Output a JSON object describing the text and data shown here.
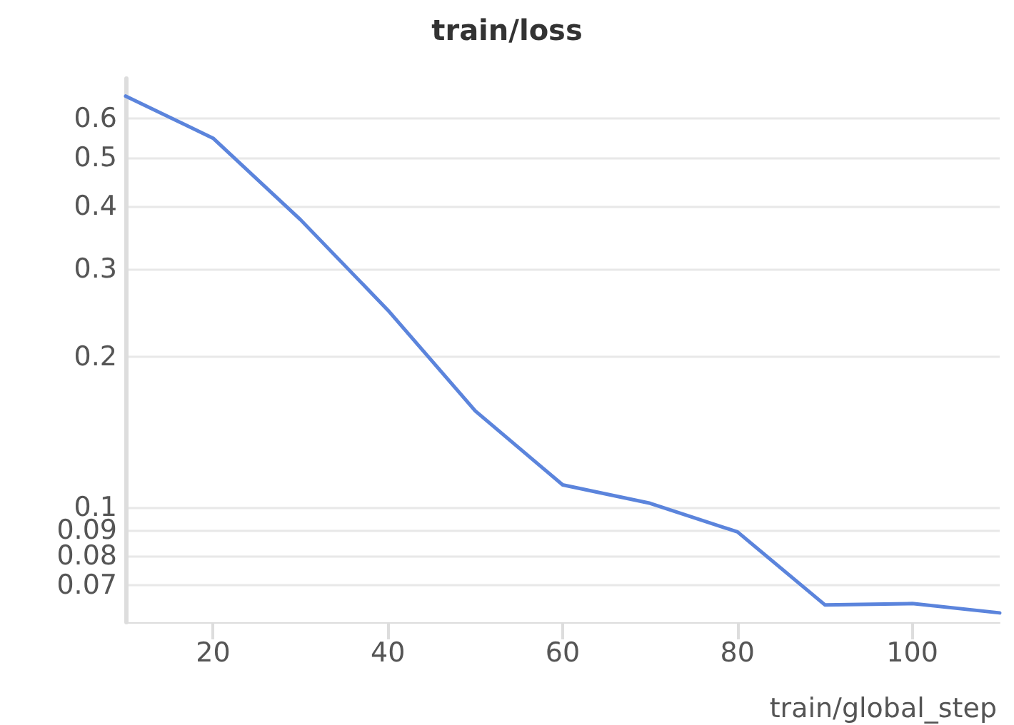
{
  "chart_data": {
    "type": "line",
    "title": "train/loss",
    "xlabel": "train/global_step",
    "x": [
      10,
      20,
      30,
      40,
      50,
      60,
      70,
      80,
      90,
      100,
      110
    ],
    "series": [
      {
        "color": "#5b84dc",
        "values": [
          0.664,
          0.547,
          0.376,
          0.248,
          0.156,
          0.111,
          0.102,
          0.0894,
          0.0639,
          0.0643,
          0.0616
        ]
      }
    ],
    "xlim": [
      10,
      110
    ],
    "xticks": [
      20,
      40,
      60,
      80,
      100
    ],
    "ylim": [
      0.059,
      0.72
    ],
    "yticks": [
      0.07,
      0.08,
      0.09,
      0.1,
      0.2,
      0.3,
      0.4,
      0.5,
      0.6
    ],
    "log": "y",
    "grid": "y",
    "marker": "none",
    "line_style": "solid"
  }
}
